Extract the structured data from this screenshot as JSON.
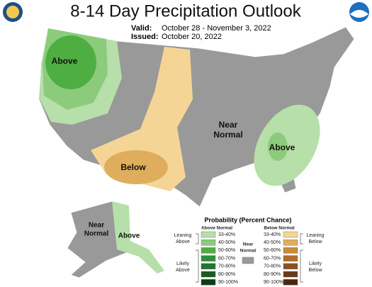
{
  "header": {
    "title": "8-14 Day Precipitation Outlook",
    "valid_label": "Valid:",
    "valid": "October 28 - November 3, 2022",
    "issued_label": "Issued:",
    "issued": "October 20, 2022"
  },
  "map_labels": {
    "northwest": "Above",
    "center": [
      "Near",
      "Normal"
    ],
    "southwest": "Below",
    "southeast": "Above",
    "alaska_west": [
      "Near",
      "Normal"
    ],
    "alaska_east": "Above"
  },
  "legend": {
    "title": "Probability (Percent Chance)",
    "above_header": "Above Normal",
    "below_header": "Below Normal",
    "near_label": [
      "Near",
      "Normal"
    ],
    "near_color": "#999999",
    "leaning_above": [
      "Leaning",
      "Above"
    ],
    "likely_above": [
      "Likely",
      "Above"
    ],
    "leaning_below": [
      "Leaning",
      "Below"
    ],
    "likely_below": [
      "Likely",
      "Below"
    ],
    "above_bins": [
      {
        "label": "33-40%",
        "color": "#b7dfa9"
      },
      {
        "label": "40-50%",
        "color": "#8dcb7c"
      },
      {
        "label": "50-60%",
        "color": "#4fae41"
      },
      {
        "label": "60-70%",
        "color": "#2f8f3b"
      },
      {
        "label": "70-80%",
        "color": "#227532"
      },
      {
        "label": "80-90%",
        "color": "#165a24"
      },
      {
        "label": "90-100%",
        "color": "#0b3d14"
      }
    ],
    "below_bins": [
      {
        "label": "33-40%",
        "color": "#f5d596"
      },
      {
        "label": "40-50%",
        "color": "#dfae5c"
      },
      {
        "label": "50-60%",
        "color": "#c98a3a"
      },
      {
        "label": "60-70%",
        "color": "#b06d2b"
      },
      {
        "label": "70-80%",
        "color": "#8c5020"
      },
      {
        "label": "80-90%",
        "color": "#6a3a18"
      },
      {
        "label": "90-100%",
        "color": "#4c2610"
      }
    ]
  }
}
